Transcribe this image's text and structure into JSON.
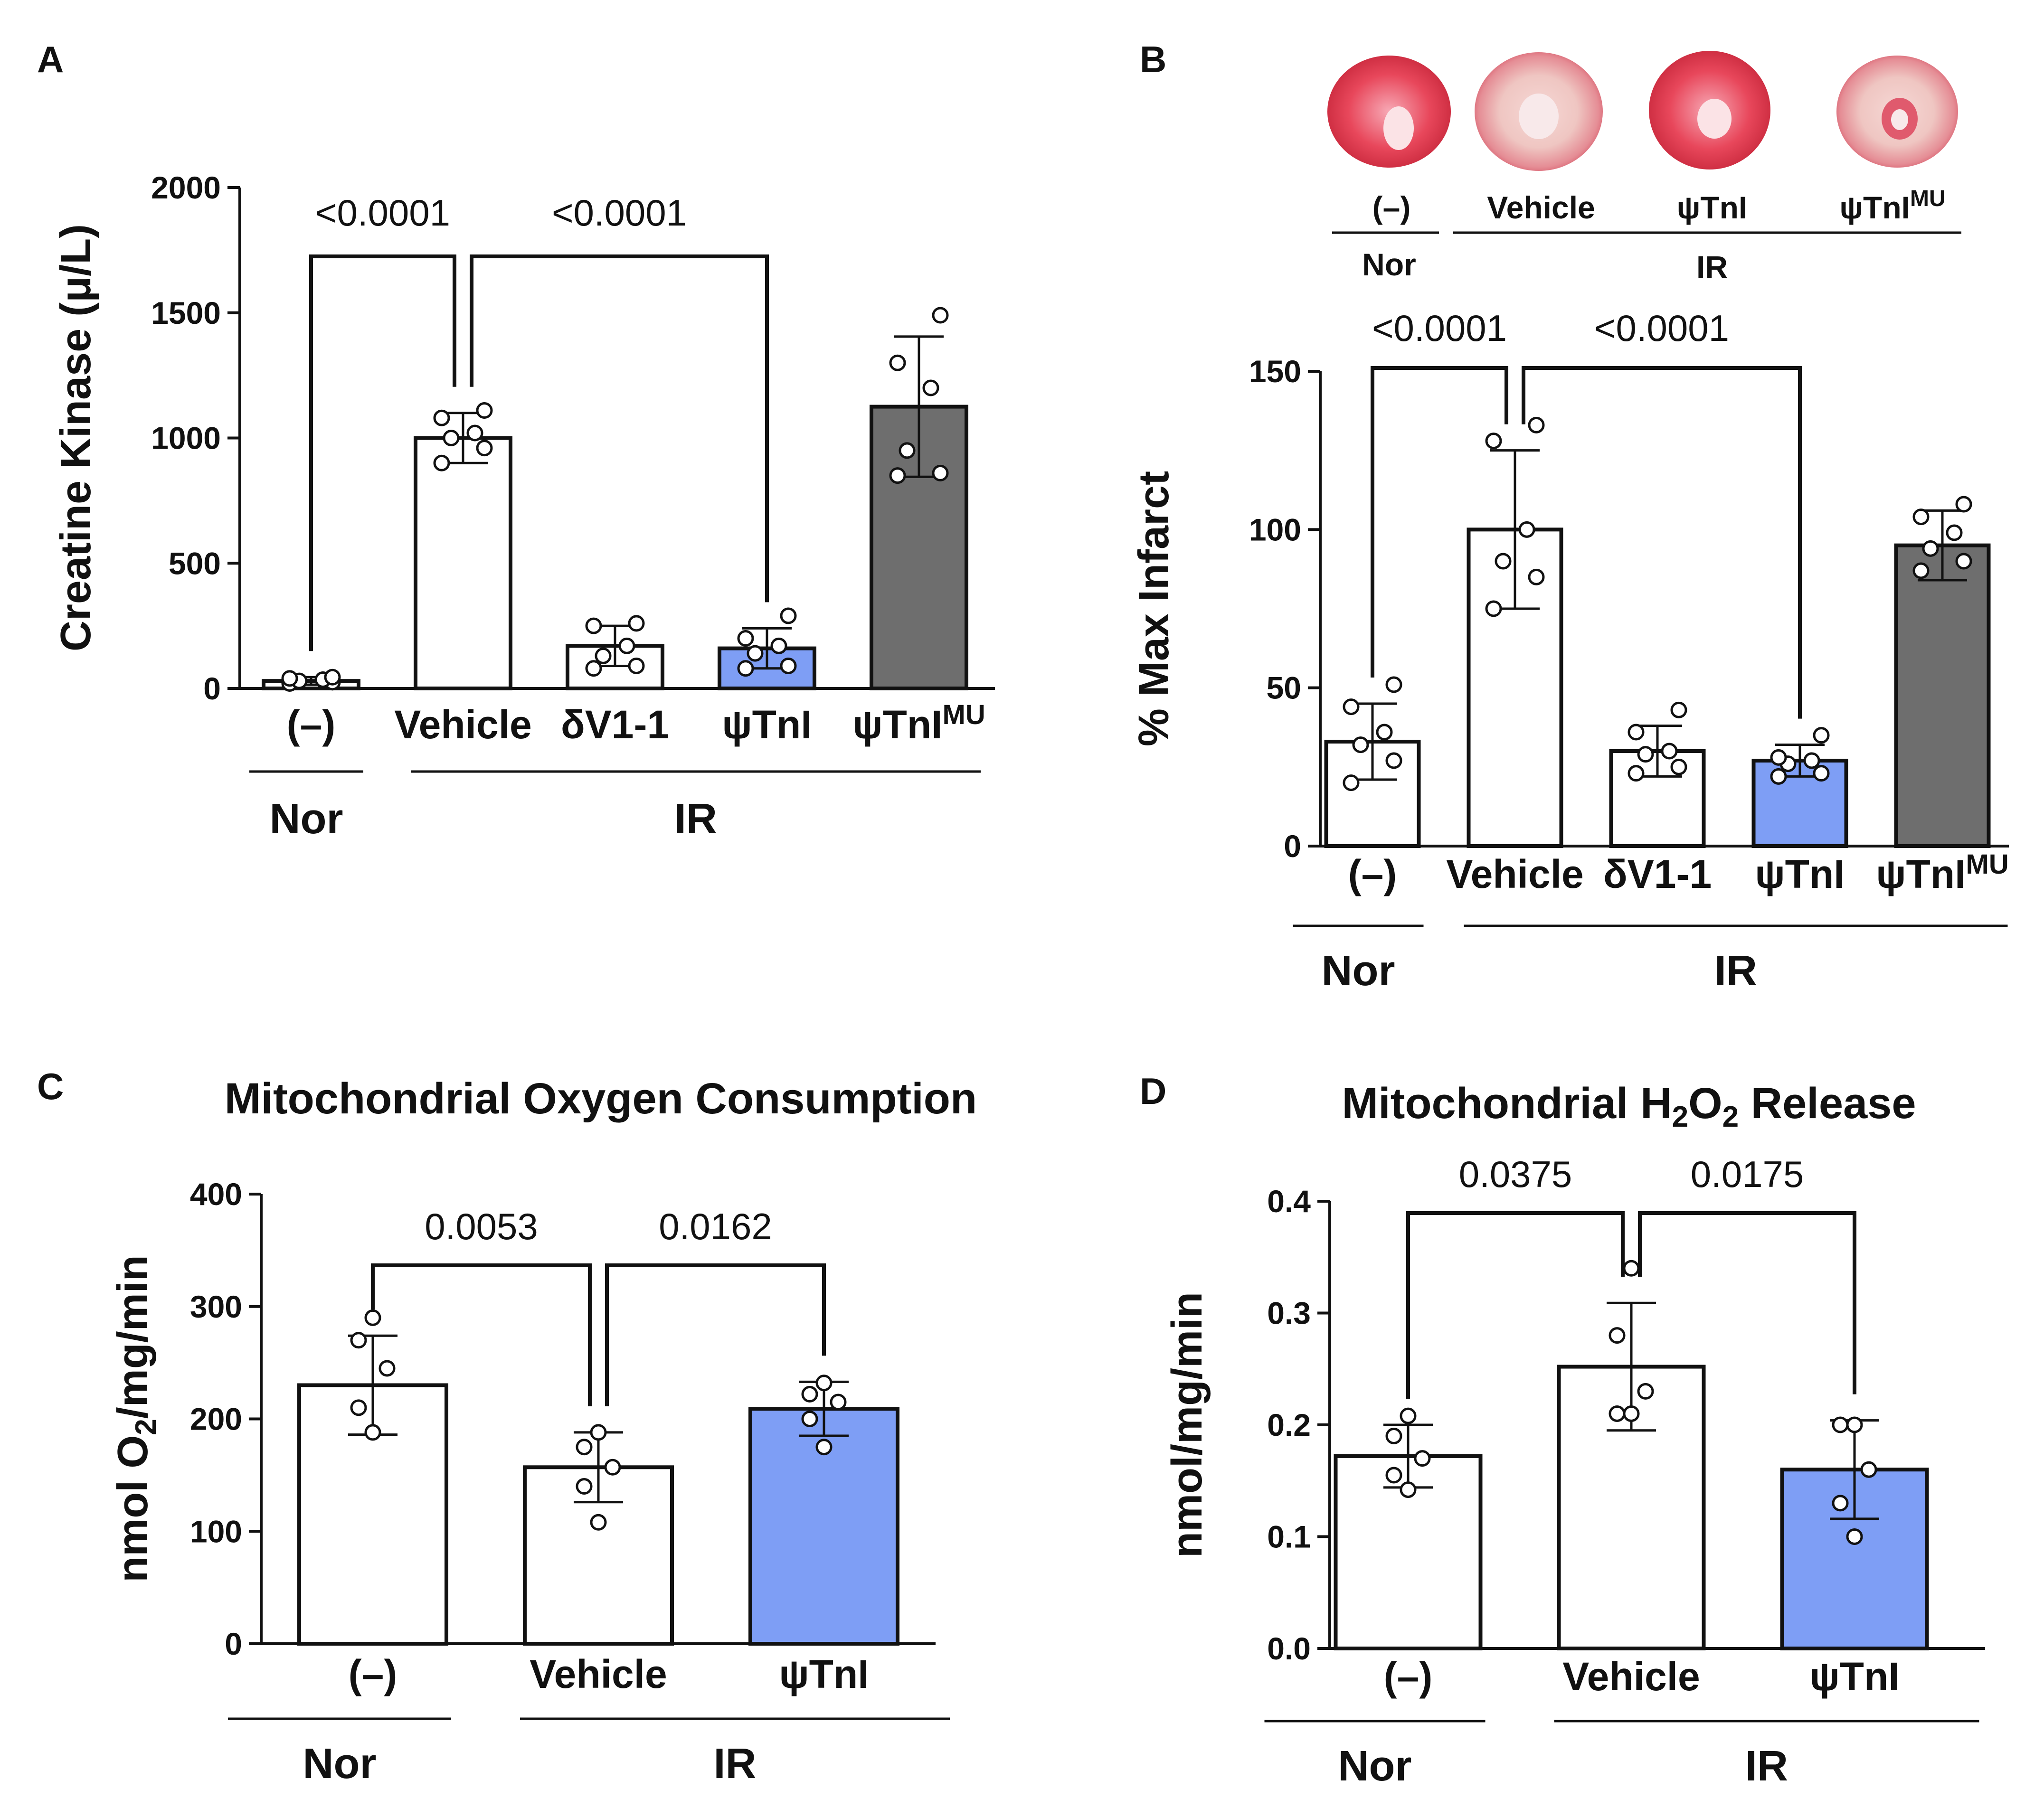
{
  "figure": {
    "panel_labels": [
      "A",
      "B",
      "C",
      "D"
    ],
    "heart_images": {
      "captions": [
        "(–)",
        "Vehicle",
        "ψTnI",
        "ψTnI"
      ],
      "caption_superscripts": [
        "",
        "",
        "",
        "MU"
      ],
      "groups": [
        "Nor",
        "IR"
      ],
      "appearance": [
        "mostly red",
        "pale center",
        "mostly red",
        "pale"
      ]
    },
    "colors": {
      "white_bar": "#ffffff",
      "blue_bar": "#7e9ef5",
      "gray_bar": "#6e6e6e",
      "outline": "#111111"
    }
  },
  "chart_data": [
    {
      "panel": "A",
      "type": "bar",
      "title": "",
      "ylabel": "Creatine Kinase (μ/L)",
      "ylim": [
        0,
        2000
      ],
      "yticks": [
        "0",
        "500",
        "1000",
        "1500",
        "2000"
      ],
      "categories": [
        "(–)",
        "Vehicle",
        "δV1-1",
        "ψTnI",
        "ψTnI"
      ],
      "category_superscripts": [
        "",
        "",
        "",
        "",
        "MU"
      ],
      "values": [
        30,
        1000,
        170,
        160,
        1125
      ],
      "errors": [
        15,
        100,
        80,
        80,
        280
      ],
      "points": [
        [
          20,
          25,
          30,
          35,
          40,
          45
        ],
        [
          900,
          960,
          1000,
          1020,
          1080,
          1110
        ],
        [
          80,
          90,
          130,
          170,
          250,
          260
        ],
        [
          80,
          90,
          140,
          170,
          200,
          290
        ],
        [
          850,
          860,
          950,
          1200,
          1300,
          1490
        ]
      ],
      "fills": [
        "white",
        "white",
        "white",
        "blue",
        "gray"
      ],
      "groups": [
        {
          "label": "Nor",
          "from": 0,
          "to": 0
        },
        {
          "label": "IR",
          "from": 1,
          "to": 4
        }
      ],
      "comparisons": [
        {
          "a": 0,
          "b": 1,
          "label": "<0.0001"
        },
        {
          "a": 1,
          "b": 3,
          "label": "<0.0001"
        }
      ]
    },
    {
      "panel": "B",
      "type": "bar",
      "title": "",
      "ylabel": "% Max Infarct",
      "ylim": [
        0,
        150
      ],
      "yticks": [
        "0",
        "50",
        "100",
        "150"
      ],
      "categories": [
        "(–)",
        "Vehicle",
        "δV1-1",
        "ψTnI",
        "ψTnI"
      ],
      "category_superscripts": [
        "",
        "",
        "",
        "",
        "MU"
      ],
      "values": [
        33,
        100,
        30,
        27,
        95
      ],
      "errors": [
        12,
        25,
        8,
        5,
        11
      ],
      "points": [
        [
          20,
          27,
          32,
          36,
          44,
          51
        ],
        [
          75,
          85,
          90,
          100,
          128,
          133
        ],
        [
          23,
          25,
          29,
          30,
          36,
          43
        ],
        [
          22,
          23,
          26,
          27,
          28,
          35
        ],
        [
          87,
          90,
          94,
          99,
          104,
          108
        ]
      ],
      "fills": [
        "white",
        "white",
        "white",
        "blue",
        "gray"
      ],
      "groups": [
        {
          "label": "Nor",
          "from": 0,
          "to": 0
        },
        {
          "label": "IR",
          "from": 1,
          "to": 4
        }
      ],
      "comparisons": [
        {
          "a": 0,
          "b": 1,
          "label": "<0.0001"
        },
        {
          "a": 1,
          "b": 3,
          "label": "<0.0001"
        }
      ]
    },
    {
      "panel": "C",
      "type": "bar",
      "title": "Mitochondrial Oxygen Consumption",
      "ylabel": "nmol O2/mg/min",
      "ylim": [
        0,
        400
      ],
      "yticks": [
        "0",
        "100",
        "200",
        "300",
        "400"
      ],
      "categories": [
        "(–)",
        "Vehicle",
        "ψTnI"
      ],
      "category_superscripts": [
        "",
        "",
        ""
      ],
      "values": [
        230,
        157,
        209
      ],
      "errors": [
        44,
        31,
        24
      ],
      "points": [
        [
          188,
          210,
          245,
          270,
          290
        ],
        [
          108,
          140,
          157,
          175,
          188
        ],
        [
          175,
          200,
          215,
          222,
          232
        ]
      ],
      "fills": [
        "white",
        "white",
        "blue"
      ],
      "groups": [
        {
          "label": "Nor",
          "from": 0,
          "to": 0
        },
        {
          "label": "IR",
          "from": 1,
          "to": 2
        }
      ],
      "comparisons": [
        {
          "a": 0,
          "b": 1,
          "label": "0.0053"
        },
        {
          "a": 1,
          "b": 2,
          "label": "0.0162"
        }
      ]
    },
    {
      "panel": "D",
      "type": "bar",
      "title": "Mitochondrial H2O2 Release",
      "ylabel": "nmol/mg/min",
      "ylim": [
        0,
        0.4
      ],
      "yticks": [
        "0.0",
        "0.1",
        "0.2",
        "0.3",
        "0.4"
      ],
      "categories": [
        "(–)",
        "Vehicle",
        "ψTnI"
      ],
      "category_superscripts": [
        "",
        "",
        ""
      ],
      "values": [
        0.172,
        0.252,
        0.16
      ],
      "errors": [
        0.028,
        0.057,
        0.044
      ],
      "points": [
        [
          0.142,
          0.155,
          0.17,
          0.19,
          0.208
        ],
        [
          0.21,
          0.21,
          0.23,
          0.28,
          0.34
        ],
        [
          0.1,
          0.13,
          0.16,
          0.2,
          0.2
        ]
      ],
      "fills": [
        "white",
        "white",
        "blue"
      ],
      "groups": [
        {
          "label": "Nor",
          "from": 0,
          "to": 0
        },
        {
          "label": "IR",
          "from": 1,
          "to": 2
        }
      ],
      "comparisons": [
        {
          "a": 0,
          "b": 1,
          "label": "0.0375"
        },
        {
          "a": 1,
          "b": 2,
          "label": "0.0175"
        }
      ]
    }
  ]
}
